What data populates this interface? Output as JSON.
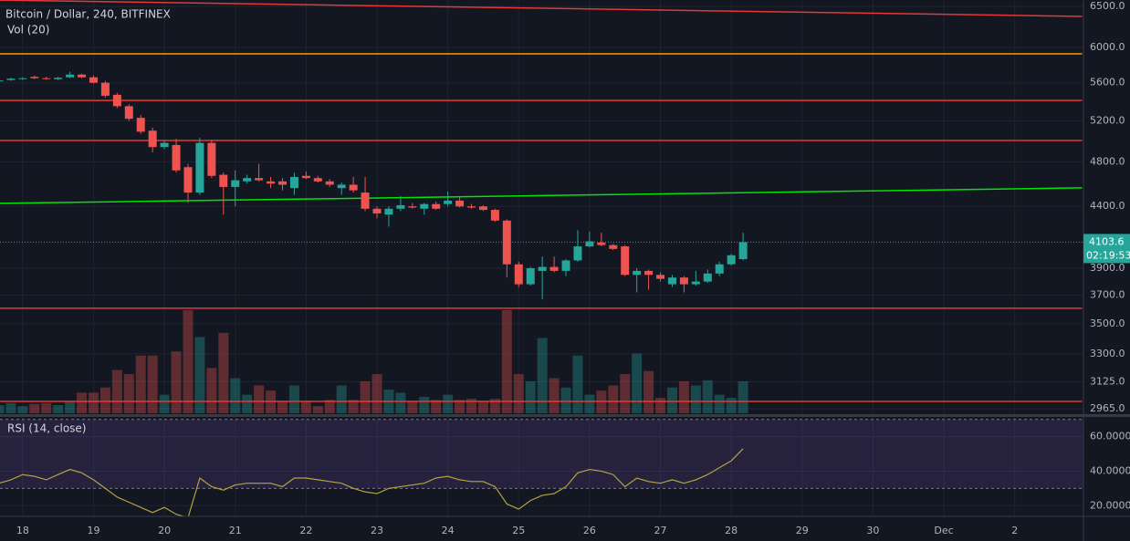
{
  "chart_data": {
    "type": "candlestick",
    "title": "Bitcoin / Dollar, 240, BITFINEX",
    "x": [
      17.6667,
      17.8333,
      18,
      18.1667,
      18.3333,
      18.5,
      18.6667,
      18.8333,
      19,
      19.1667,
      19.3333,
      19.5,
      19.6667,
      19.8333,
      20,
      20.1667,
      20.3333,
      20.5,
      20.6667,
      20.8333,
      21,
      21.1667,
      21.3333,
      21.5,
      21.6667,
      21.8333,
      22,
      22.1667,
      22.3333,
      22.5,
      22.6667,
      22.8333,
      23,
      23.1667,
      23.3333,
      23.5,
      23.6667,
      23.8333,
      24,
      24.1667,
      24.3333,
      24.5,
      24.6667,
      24.8333,
      25,
      25.1667,
      25.3333,
      25.5,
      25.6667,
      25.8333,
      26,
      26.1667,
      26.3333,
      26.5,
      26.6667,
      26.8333,
      27,
      27.1667,
      27.3333,
      27.5,
      27.6667,
      27.8333,
      28,
      28.1667
    ],
    "open": [
      5615,
      5630,
      5640,
      5665,
      5650,
      5640,
      5660,
      5690,
      5660,
      5600,
      5470,
      5350,
      5230,
      5100,
      4940,
      4960,
      4750,
      4520,
      4980,
      4680,
      4570,
      4620,
      4650,
      4620,
      4620,
      4560,
      4670,
      4650,
      4620,
      4560,
      4590,
      4520,
      4380,
      4330,
      4380,
      4400,
      4380,
      4420,
      4420,
      4450,
      4400,
      4400,
      4370,
      4280,
      3930,
      3780,
      3880,
      3910,
      3880,
      3960,
      4070,
      4100,
      4080,
      4070,
      3850,
      3880,
      3850,
      3780,
      3830,
      3780,
      3800,
      3860,
      3930,
      3970
    ],
    "high": [
      5640,
      5655,
      5660,
      5680,
      5665,
      5665,
      5720,
      5700,
      5680,
      5620,
      5490,
      5370,
      5260,
      5130,
      5000,
      5020,
      4780,
      5030,
      5010,
      4700,
      4720,
      4680,
      4780,
      4660,
      4650,
      4700,
      4710,
      4670,
      4640,
      4610,
      4660,
      4660,
      4400,
      4400,
      4490,
      4430,
      4430,
      4440,
      4530,
      4490,
      4420,
      4410,
      4380,
      4290,
      3950,
      3910,
      3990,
      3990,
      3970,
      4200,
      4190,
      4180,
      4090,
      4080,
      3900,
      3890,
      3870,
      3850,
      3840,
      3880,
      3890,
      3950,
      4010,
      4180
    ],
    "low": [
      5600,
      5620,
      5630,
      5640,
      5635,
      5630,
      5650,
      5650,
      5590,
      5440,
      5330,
      5200,
      5070,
      4890,
      4920,
      4700,
      4430,
      4500,
      4650,
      4330,
      4400,
      4600,
      4620,
      4560,
      4540,
      4500,
      4640,
      4610,
      4570,
      4500,
      4520,
      4360,
      4300,
      4230,
      4360,
      4380,
      4330,
      4370,
      4400,
      4390,
      4380,
      4360,
      4270,
      3830,
      3760,
      3770,
      3670,
      3870,
      3840,
      3950,
      4060,
      4070,
      4040,
      3840,
      3720,
      3740,
      3800,
      3760,
      3720,
      3770,
      3790,
      3840,
      3920,
      3960
    ],
    "close": [
      5625,
      5645,
      5650,
      5650,
      5640,
      5655,
      5690,
      5660,
      5600,
      5460,
      5350,
      5220,
      5090,
      4940,
      4980,
      4720,
      4520,
      4980,
      4670,
      4570,
      4630,
      4650,
      4630,
      4600,
      4590,
      4660,
      4650,
      4620,
      4590,
      4590,
      4540,
      4380,
      4340,
      4380,
      4410,
      4390,
      4420,
      4380,
      4450,
      4400,
      4390,
      4370,
      4280,
      3930,
      3780,
      3900,
      3910,
      3880,
      3960,
      4070,
      4110,
      4080,
      4050,
      3850,
      3880,
      3850,
      3820,
      3830,
      3780,
      3800,
      3860,
      3930,
      4000,
      4103.6
    ],
    "up_color": "#26a69a",
    "down_color": "#ef5350",
    "log_scale": true,
    "ylim": [
      2939,
      6581
    ],
    "yticks": [
      {
        "value": 6500,
        "label": "6500.0"
      },
      {
        "value": 6000,
        "label": "6000.0"
      },
      {
        "value": 5600,
        "label": "5600.0"
      },
      {
        "value": 5200,
        "label": "5200.0"
      },
      {
        "value": 4800,
        "label": "4800.0"
      },
      {
        "value": 4400,
        "label": "4400.0"
      },
      {
        "value": 3900,
        "label": "3900.0"
      },
      {
        "value": 3700,
        "label": "3700.0"
      },
      {
        "value": 3500,
        "label": "3500.0"
      },
      {
        "value": 3300,
        "label": "3300.0"
      },
      {
        "value": 3125,
        "label": "3125.0"
      },
      {
        "value": 2965,
        "label": "2965.0"
      }
    ],
    "xlim": [
      17.68,
      32.97
    ],
    "xticks": [
      18,
      19,
      20,
      21,
      22,
      23,
      24,
      25,
      26,
      27,
      28,
      29,
      30,
      {
        "value": 31,
        "label": "Dec"
      },
      {
        "value": 32,
        "label": "2"
      }
    ],
    "grid": true,
    "volume": {
      "label": "Vol (20)",
      "vlim": [
        0,
        100
      ],
      "values": [
        8,
        10,
        7,
        9,
        10,
        8,
        12,
        20,
        20,
        25,
        42,
        38,
        56,
        56,
        18,
        60,
        100,
        74,
        44,
        78,
        34,
        18,
        27,
        22,
        12,
        27,
        12,
        7,
        13,
        27,
        13,
        31,
        38,
        23,
        20,
        12,
        16,
        13,
        18,
        13,
        14,
        12,
        14,
        100,
        38,
        31,
        73,
        34,
        25,
        56,
        18,
        22,
        27,
        38,
        58,
        41,
        15,
        25,
        31,
        27,
        32,
        18,
        15,
        31
      ]
    },
    "rsi": {
      "label": "RSI (14, close)",
      "color": "#b5a33f",
      "ylim": [
        13.8,
        70.9
      ],
      "yticks": [
        {
          "value": 60,
          "label": "60.0000"
        },
        {
          "value": 40,
          "label": "40.0000"
        },
        {
          "value": 20,
          "label": "20.0000"
        }
      ],
      "band": [
        30,
        70
      ],
      "values": [
        33,
        35,
        38,
        37,
        35,
        38,
        41,
        39,
        35,
        30,
        25,
        22,
        19,
        16,
        19,
        15,
        13,
        36,
        31,
        29,
        32,
        33,
        33,
        33,
        31,
        36,
        36,
        35,
        34,
        33,
        30,
        28,
        27,
        30,
        31,
        32,
        33,
        36,
        37,
        35,
        34,
        34,
        31,
        21,
        18,
        23,
        26,
        27,
        31,
        39,
        41,
        40,
        38,
        31,
        36,
        34,
        33,
        35,
        33,
        35,
        38,
        42,
        46,
        53
      ]
    },
    "drawings": [
      {
        "color": "#e53935",
        "x": [
          17.68,
          32.95
        ],
        "y": [
          6580,
          6374
        ]
      },
      {
        "color": "#ff9800",
        "x": [
          17.68,
          32.95
        ],
        "y": [
          5925,
          5925
        ]
      },
      {
        "color": "#e53935",
        "x": [
          17.68,
          32.95
        ],
        "y": [
          5410,
          5410
        ]
      },
      {
        "color": "#e53935",
        "x": [
          17.68,
          32.95
        ],
        "y": [
          5004,
          5004
        ]
      },
      {
        "color": "#00e600",
        "x": [
          17.68,
          32.95
        ],
        "y": [
          4426,
          4562
        ]
      },
      {
        "color": "#e53935",
        "x": [
          17.68,
          32.95
        ],
        "y": [
          3607,
          3607
        ]
      },
      {
        "color": "#e53935",
        "x": [
          17.68,
          32.95
        ],
        "y": [
          3008,
          3008
        ]
      }
    ],
    "last_price": 4103.6,
    "countdown": "02:19:53"
  }
}
